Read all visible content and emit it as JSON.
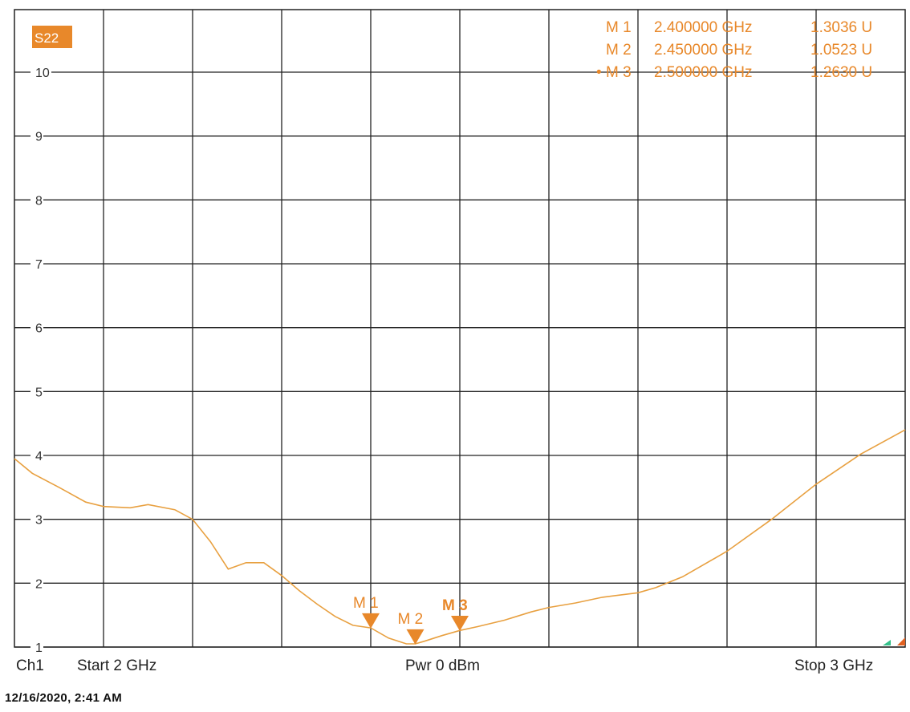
{
  "chart_data": {
    "type": "line",
    "trace_name": "S22",
    "xlim": [
      2.0,
      3.0
    ],
    "ylim": [
      1,
      10
    ],
    "yticks": [
      "1",
      "2",
      "3",
      "4",
      "5",
      "6",
      "7",
      "8",
      "9",
      "10"
    ],
    "grid": true,
    "trace_color": "#e8a040",
    "marker_color": "#e8882a",
    "series": [
      {
        "x": [
          2.0,
          2.02,
          2.05,
          2.08,
          2.1,
          2.13,
          2.15,
          2.18,
          2.2,
          2.22,
          2.24,
          2.26,
          2.28,
          2.3,
          2.32,
          2.34,
          2.36,
          2.38,
          2.4,
          2.42,
          2.44,
          2.45,
          2.46,
          2.48,
          2.5,
          2.52,
          2.55,
          2.58,
          2.6,
          2.63,
          2.66,
          2.7,
          2.72,
          2.75,
          2.8,
          2.85,
          2.9,
          2.95,
          3.0
        ],
        "y": [
          3.95,
          3.72,
          3.5,
          3.27,
          3.2,
          3.18,
          3.23,
          3.15,
          3.0,
          2.65,
          2.22,
          2.32,
          2.32,
          2.12,
          1.88,
          1.67,
          1.48,
          1.34,
          1.3,
          1.14,
          1.05,
          1.05,
          1.09,
          1.18,
          1.26,
          1.32,
          1.42,
          1.55,
          1.62,
          1.69,
          1.78,
          1.85,
          1.93,
          2.1,
          2.5,
          3.0,
          3.55,
          4.02,
          4.4
        ]
      }
    ],
    "markers": [
      {
        "label": "M 1",
        "freq": "2.400000 GHz",
        "value": "1.3036 U",
        "x": 2.4,
        "y": 1.3036,
        "active": false
      },
      {
        "label": "M 2",
        "freq": "2.450000 GHz",
        "value": "1.0523 U",
        "x": 2.45,
        "y": 1.0523,
        "active": false
      },
      {
        "label": "M 3",
        "freq": "2.500000 GHz",
        "value": "1.2630 U",
        "x": 2.5,
        "y": 1.263,
        "active": true
      }
    ]
  },
  "footer": {
    "channel": "Ch1",
    "start": "Start  2 GHz",
    "power": "Pwr  0 dBm",
    "stop": "Stop  3 GHz",
    "timestamp": "12/16/2020, 2:41 AM"
  }
}
